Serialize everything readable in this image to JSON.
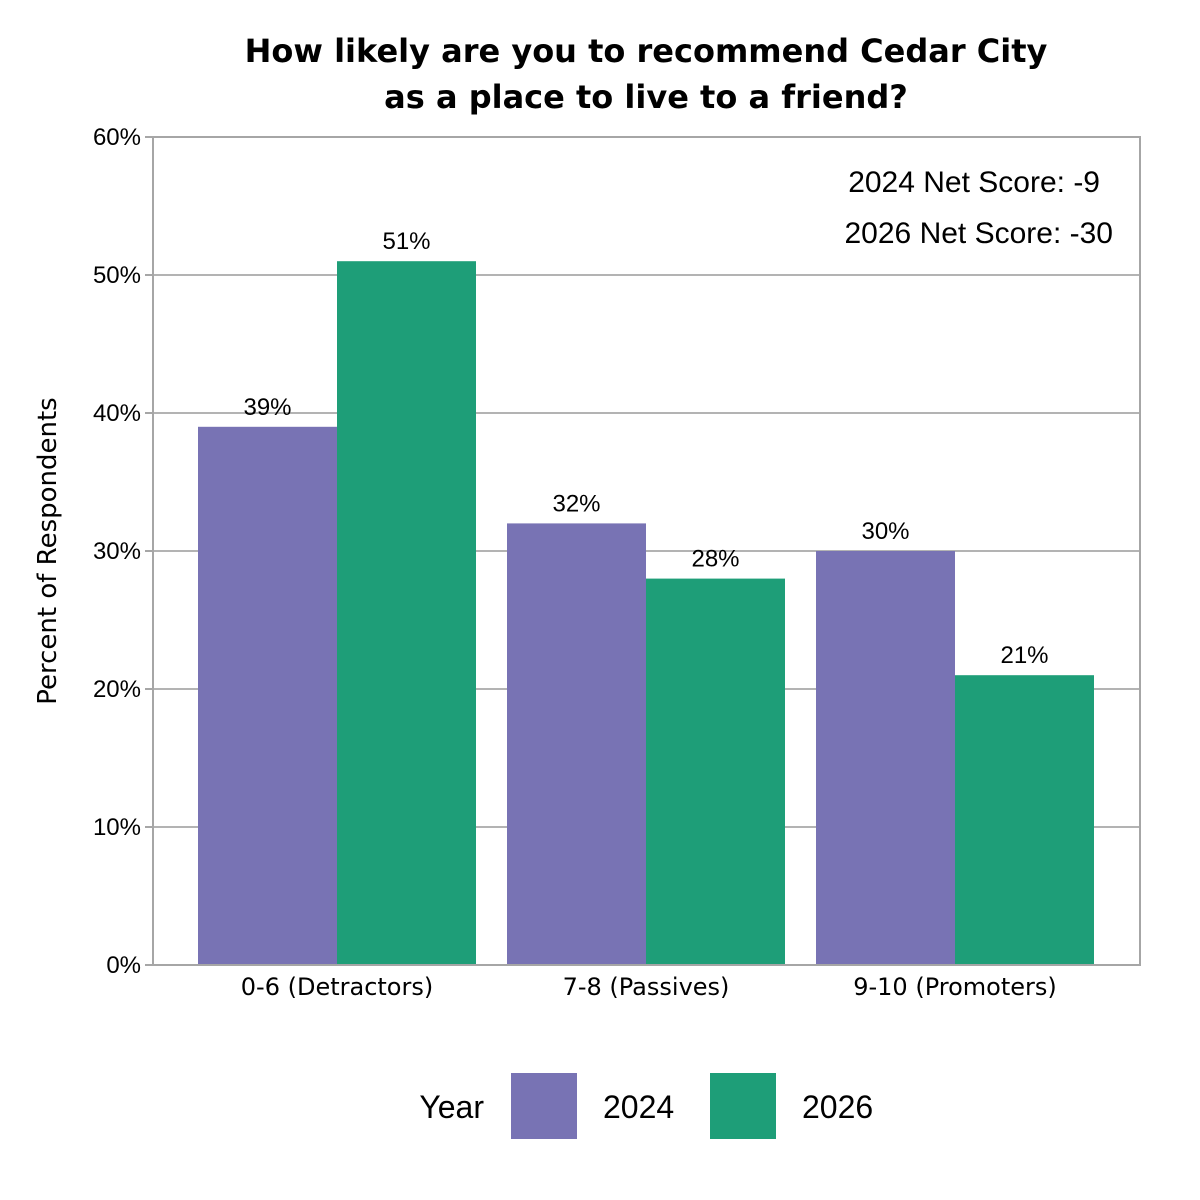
{
  "chart_data": {
    "type": "bar",
    "title_lines": [
      "How likely are you to recommend Cedar City",
      "as a place to live to a friend?"
    ],
    "ylabel": "Percent of Respondents",
    "xlabel": "",
    "ylim": [
      0,
      60
    ],
    "yticks": [
      0,
      10,
      20,
      30,
      40,
      50,
      60
    ],
    "ytick_labels": [
      "0%",
      "10%",
      "20%",
      "30%",
      "40%",
      "50%",
      "60%"
    ],
    "categories": [
      "0-6 (Detractors)",
      "7-8 (Passives)",
      "9-10 (Promoters)"
    ],
    "series": [
      {
        "name": "2024",
        "color": "#7873b4",
        "values": [
          39,
          32,
          30
        ],
        "labels": [
          "39%",
          "32%",
          "30%"
        ]
      },
      {
        "name": "2026",
        "color": "#1e9e78",
        "values": [
          51,
          28,
          21
        ],
        "labels": [
          "51%",
          "28%",
          "21%"
        ]
      }
    ],
    "annotations": [
      "2024 Net Score: -9",
      "2026 Net Score: -30"
    ],
    "legend": {
      "title": "Year",
      "placement": "bottom"
    },
    "grid": true
  }
}
